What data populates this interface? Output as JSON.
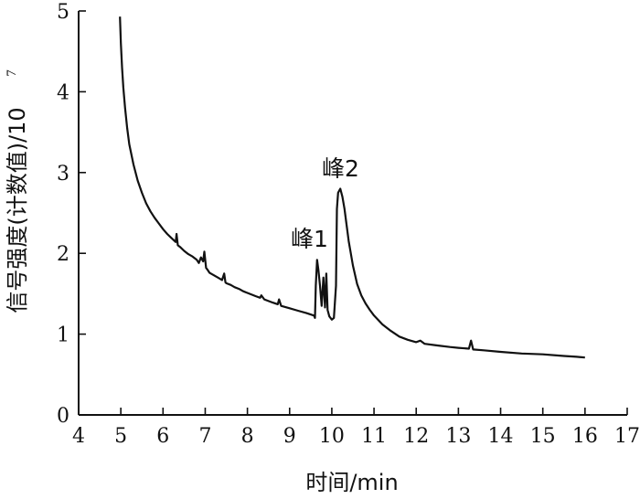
{
  "chart_data": {
    "type": "line",
    "xlabel": "时间/min",
    "ylabel": "信号强度(计数值)/10",
    "ylabel_exponent": "7",
    "xlim": [
      4,
      17
    ],
    "ylim": [
      0,
      5
    ],
    "xticks": [
      "4",
      "5",
      "6",
      "7",
      "8",
      "9",
      "10",
      "11",
      "12",
      "13",
      "14",
      "15",
      "16",
      "17"
    ],
    "yticks": [
      "0",
      "1",
      "2",
      "3",
      "4",
      "5"
    ],
    "grid": false,
    "annotations": [
      {
        "text": "峰1",
        "x": 9.65,
        "y": 1.95
      },
      {
        "text": "峰2",
        "x": 10.2,
        "y": 2.78
      }
    ],
    "series": [
      {
        "x": [
          4.98,
          5.0,
          5.03,
          5.06,
          5.1,
          5.15,
          5.2,
          5.3,
          5.4,
          5.5,
          5.6,
          5.7,
          5.8,
          5.9,
          6.0,
          6.1,
          6.2,
          6.3,
          6.32,
          6.35,
          6.4,
          6.5,
          6.6,
          6.7,
          6.8,
          6.85,
          6.9,
          6.95,
          6.98,
          7.02,
          7.05,
          7.1,
          7.2,
          7.3,
          7.4,
          7.45,
          7.48,
          7.5,
          7.6,
          7.7,
          7.8,
          7.9,
          8.0,
          8.2,
          8.3,
          8.33,
          8.4,
          8.6,
          8.72,
          8.75,
          8.8,
          9.0,
          9.2,
          9.4,
          9.58,
          9.6,
          9.62,
          9.65,
          9.68,
          9.72,
          9.76,
          9.8,
          9.84,
          9.87,
          9.9,
          9.94,
          10.0,
          10.05,
          10.1,
          10.12,
          10.15,
          10.2,
          10.25,
          10.3,
          10.35,
          10.4,
          10.5,
          10.6,
          10.7,
          10.8,
          10.9,
          11.0,
          11.2,
          11.4,
          11.6,
          11.8,
          12.0,
          12.1,
          12.2,
          12.5,
          12.8,
          13.0,
          13.25,
          13.3,
          13.35,
          13.6,
          14.0,
          14.5,
          15.0,
          15.5,
          15.8,
          16.0
        ],
        "values": [
          4.93,
          4.6,
          4.3,
          4.05,
          3.8,
          3.55,
          3.35,
          3.1,
          2.9,
          2.75,
          2.62,
          2.52,
          2.44,
          2.37,
          2.3,
          2.24,
          2.19,
          2.14,
          2.24,
          2.1,
          2.08,
          2.03,
          1.99,
          1.96,
          1.92,
          1.88,
          1.95,
          1.9,
          2.02,
          1.82,
          1.8,
          1.76,
          1.73,
          1.7,
          1.67,
          1.75,
          1.64,
          1.63,
          1.61,
          1.58,
          1.56,
          1.53,
          1.51,
          1.47,
          1.45,
          1.48,
          1.43,
          1.39,
          1.37,
          1.43,
          1.35,
          1.32,
          1.29,
          1.26,
          1.23,
          1.2,
          1.6,
          1.92,
          1.8,
          1.6,
          1.35,
          1.7,
          1.33,
          1.75,
          1.3,
          1.22,
          1.18,
          1.2,
          1.6,
          2.55,
          2.75,
          2.8,
          2.7,
          2.55,
          2.35,
          2.15,
          1.85,
          1.62,
          1.48,
          1.38,
          1.3,
          1.23,
          1.12,
          1.04,
          0.97,
          0.93,
          0.9,
          0.92,
          0.88,
          0.86,
          0.84,
          0.83,
          0.82,
          0.92,
          0.81,
          0.8,
          0.78,
          0.76,
          0.75,
          0.73,
          0.72,
          0.71
        ]
      }
    ]
  }
}
